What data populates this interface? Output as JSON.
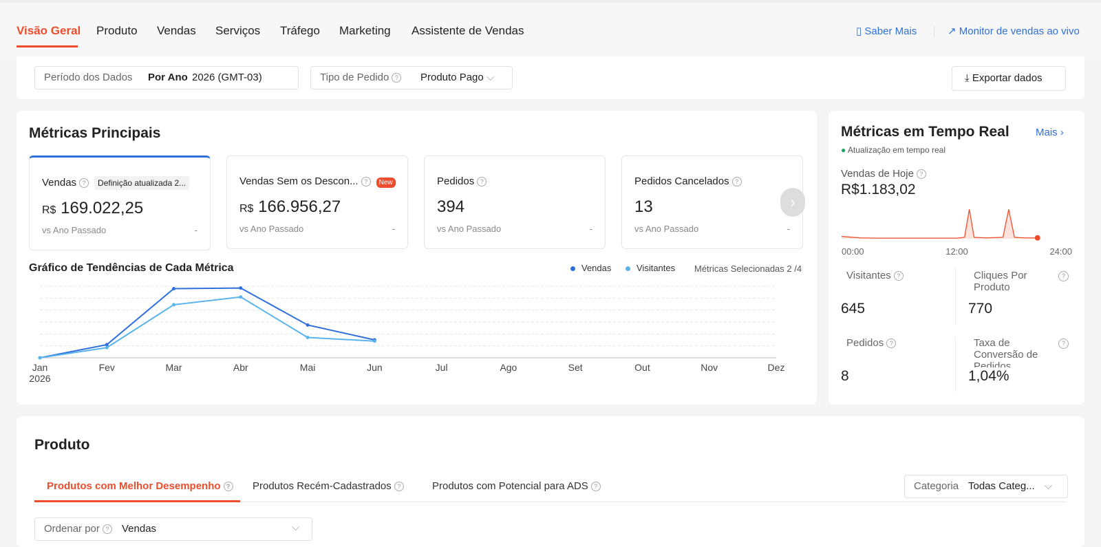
{
  "nav": {
    "tabs": [
      "Visão Geral",
      "Produto",
      "Vendas",
      "Serviços",
      "Tráfego",
      "Marketing",
      "Assistente de Vendas"
    ],
    "links": [
      "Saber Mais",
      "Monitor de vendas ao vivo"
    ]
  },
  "filters": {
    "period_label": "Período dos Dados",
    "period_mode": "Por Ano",
    "period_value": "2026 (GMT-03)",
    "order_type_label": "Tipo de Pedido",
    "order_type_value": "Produto Pago",
    "export": "Exportar dados"
  },
  "main_metrics": {
    "title": "Métricas Principais",
    "cards": [
      {
        "label": "Vendas",
        "badge": "Definição atualizada 2...",
        "currency": "R$",
        "value": "169.022,25",
        "compare": "vs Ano Passado",
        "change": "-"
      },
      {
        "label": "Vendas Sem os Descon...",
        "badge": "New",
        "currency": "R$",
        "value": "166.956,27",
        "compare": "vs Ano Passado",
        "change": "-"
      },
      {
        "label": "Pedidos",
        "value": "394",
        "compare": "vs Ano Passado",
        "change": "-"
      },
      {
        "label": "Pedidos Cancelados",
        "value": "13",
        "compare": "vs Ano Passado",
        "change": "-"
      }
    ]
  },
  "chart_data": {
    "type": "line",
    "title": "Gráfico de Tendências de Cada Métrica",
    "selected": "Métricas Selecionadas 2 /4",
    "categories": [
      "Jan",
      "Fev",
      "Mar",
      "Abr",
      "Mai",
      "Jun",
      "Jul",
      "Ago",
      "Set",
      "Out",
      "Nov",
      "Dez"
    ],
    "year": "2026",
    "series": [
      {
        "name": "Vendas",
        "color": "#2f6fdc",
        "values": [
          0,
          1.1,
          5.8,
          5.85,
          2.75,
          1.5,
          null,
          null,
          null,
          null,
          null,
          null
        ]
      },
      {
        "name": "Visitantes",
        "color": "#5ab4ec",
        "values": [
          0,
          0.85,
          4.45,
          5.1,
          1.7,
          1.4,
          null,
          null,
          null,
          null,
          null,
          null
        ]
      }
    ],
    "ylim": [
      0,
      6
    ],
    "yticks": [
      0,
      1,
      2,
      3,
      4,
      5,
      6
    ],
    "grid": true
  },
  "realtime": {
    "title": "Métricas em Tempo Real",
    "more": "Mais",
    "status": "Atualização em tempo real",
    "today_label": "Vendas de Hoje",
    "today_value": "R$1.183,02",
    "chart": {
      "type": "area",
      "color": "#ee4d2d",
      "x": [
        0,
        2,
        4,
        6,
        8,
        10,
        12,
        12.8,
        13.3,
        13.8,
        15,
        16.8,
        17.4,
        18,
        19,
        20.4
      ],
      "values": [
        0.8,
        0.3,
        0.2,
        0.2,
        0.2,
        0.2,
        0.2,
        0.5,
        10,
        0.5,
        0.3,
        0.5,
        10,
        0.5,
        0.3,
        0.3
      ],
      "xlim": [
        0,
        24
      ],
      "ylim": [
        0,
        11
      ],
      "xticks": [
        {
          "value": 0,
          "label": "00:00"
        },
        {
          "value": 12,
          "label": "12:00"
        },
        {
          "value": 24,
          "label": "24:00"
        }
      ]
    },
    "stats": [
      {
        "label": "Visitantes",
        "value": "645"
      },
      {
        "label": "Cliques Por Produto",
        "value": "770"
      },
      {
        "label": "Pedidos",
        "value": "8"
      },
      {
        "label": "Taxa de Conversão de Pedidos",
        "value": "1,04%"
      }
    ]
  },
  "product": {
    "title": "Produto",
    "tabs": [
      "Produtos com Melhor Desempenho",
      "Produtos Recém-Cadastrados",
      "Produtos com Potencial para ADS"
    ],
    "category_label": "Categoria",
    "category_value": "Todas Categ...",
    "sort_label": "Ordenar por",
    "sort_value": "Vendas"
  }
}
